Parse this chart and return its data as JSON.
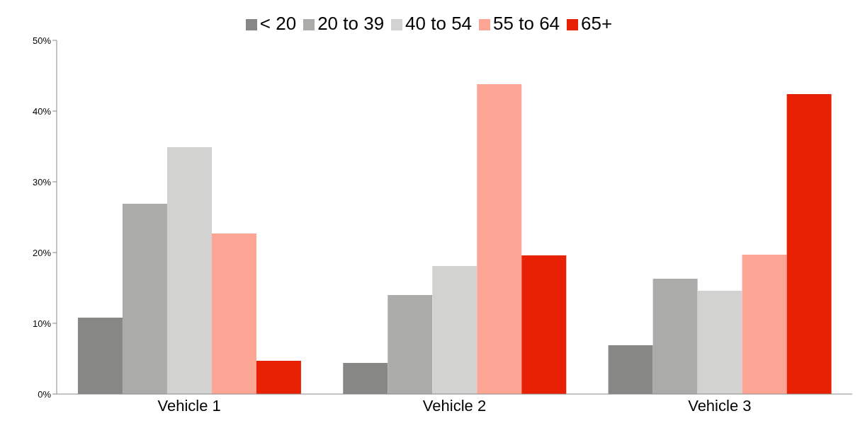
{
  "chart_data": {
    "type": "bar",
    "categories": [
      "Vehicle 1",
      "Vehicle 2",
      "Vehicle 3"
    ],
    "series": [
      {
        "name": "< 20",
        "color": "#878786",
        "values": [
          10.8,
          4.4,
          6.9
        ]
      },
      {
        "name": "20 to 39",
        "color": "#ababaa",
        "values": [
          26.9,
          14.0,
          16.3
        ]
      },
      {
        "name": "40 to 54",
        "color": "#d2d2d1",
        "values": [
          34.9,
          18.1,
          14.6
        ]
      },
      {
        "name": "55 to 64",
        "color": "#fca595",
        "values": [
          22.7,
          43.8,
          19.7
        ]
      },
      {
        "name": "65+",
        "color": "#e82105",
        "values": [
          4.7,
          19.6,
          42.4
        ]
      }
    ],
    "ylim": [
      0,
      50
    ],
    "yticks": [
      {
        "value": 0,
        "label": "0%"
      },
      {
        "value": 10,
        "label": "10%"
      },
      {
        "value": 20,
        "label": "20%"
      },
      {
        "value": 30,
        "label": "30%"
      },
      {
        "value": 40,
        "label": "40%"
      },
      {
        "value": 50,
        "label": "50%"
      }
    ],
    "legend": "top",
    "grid": false
  }
}
